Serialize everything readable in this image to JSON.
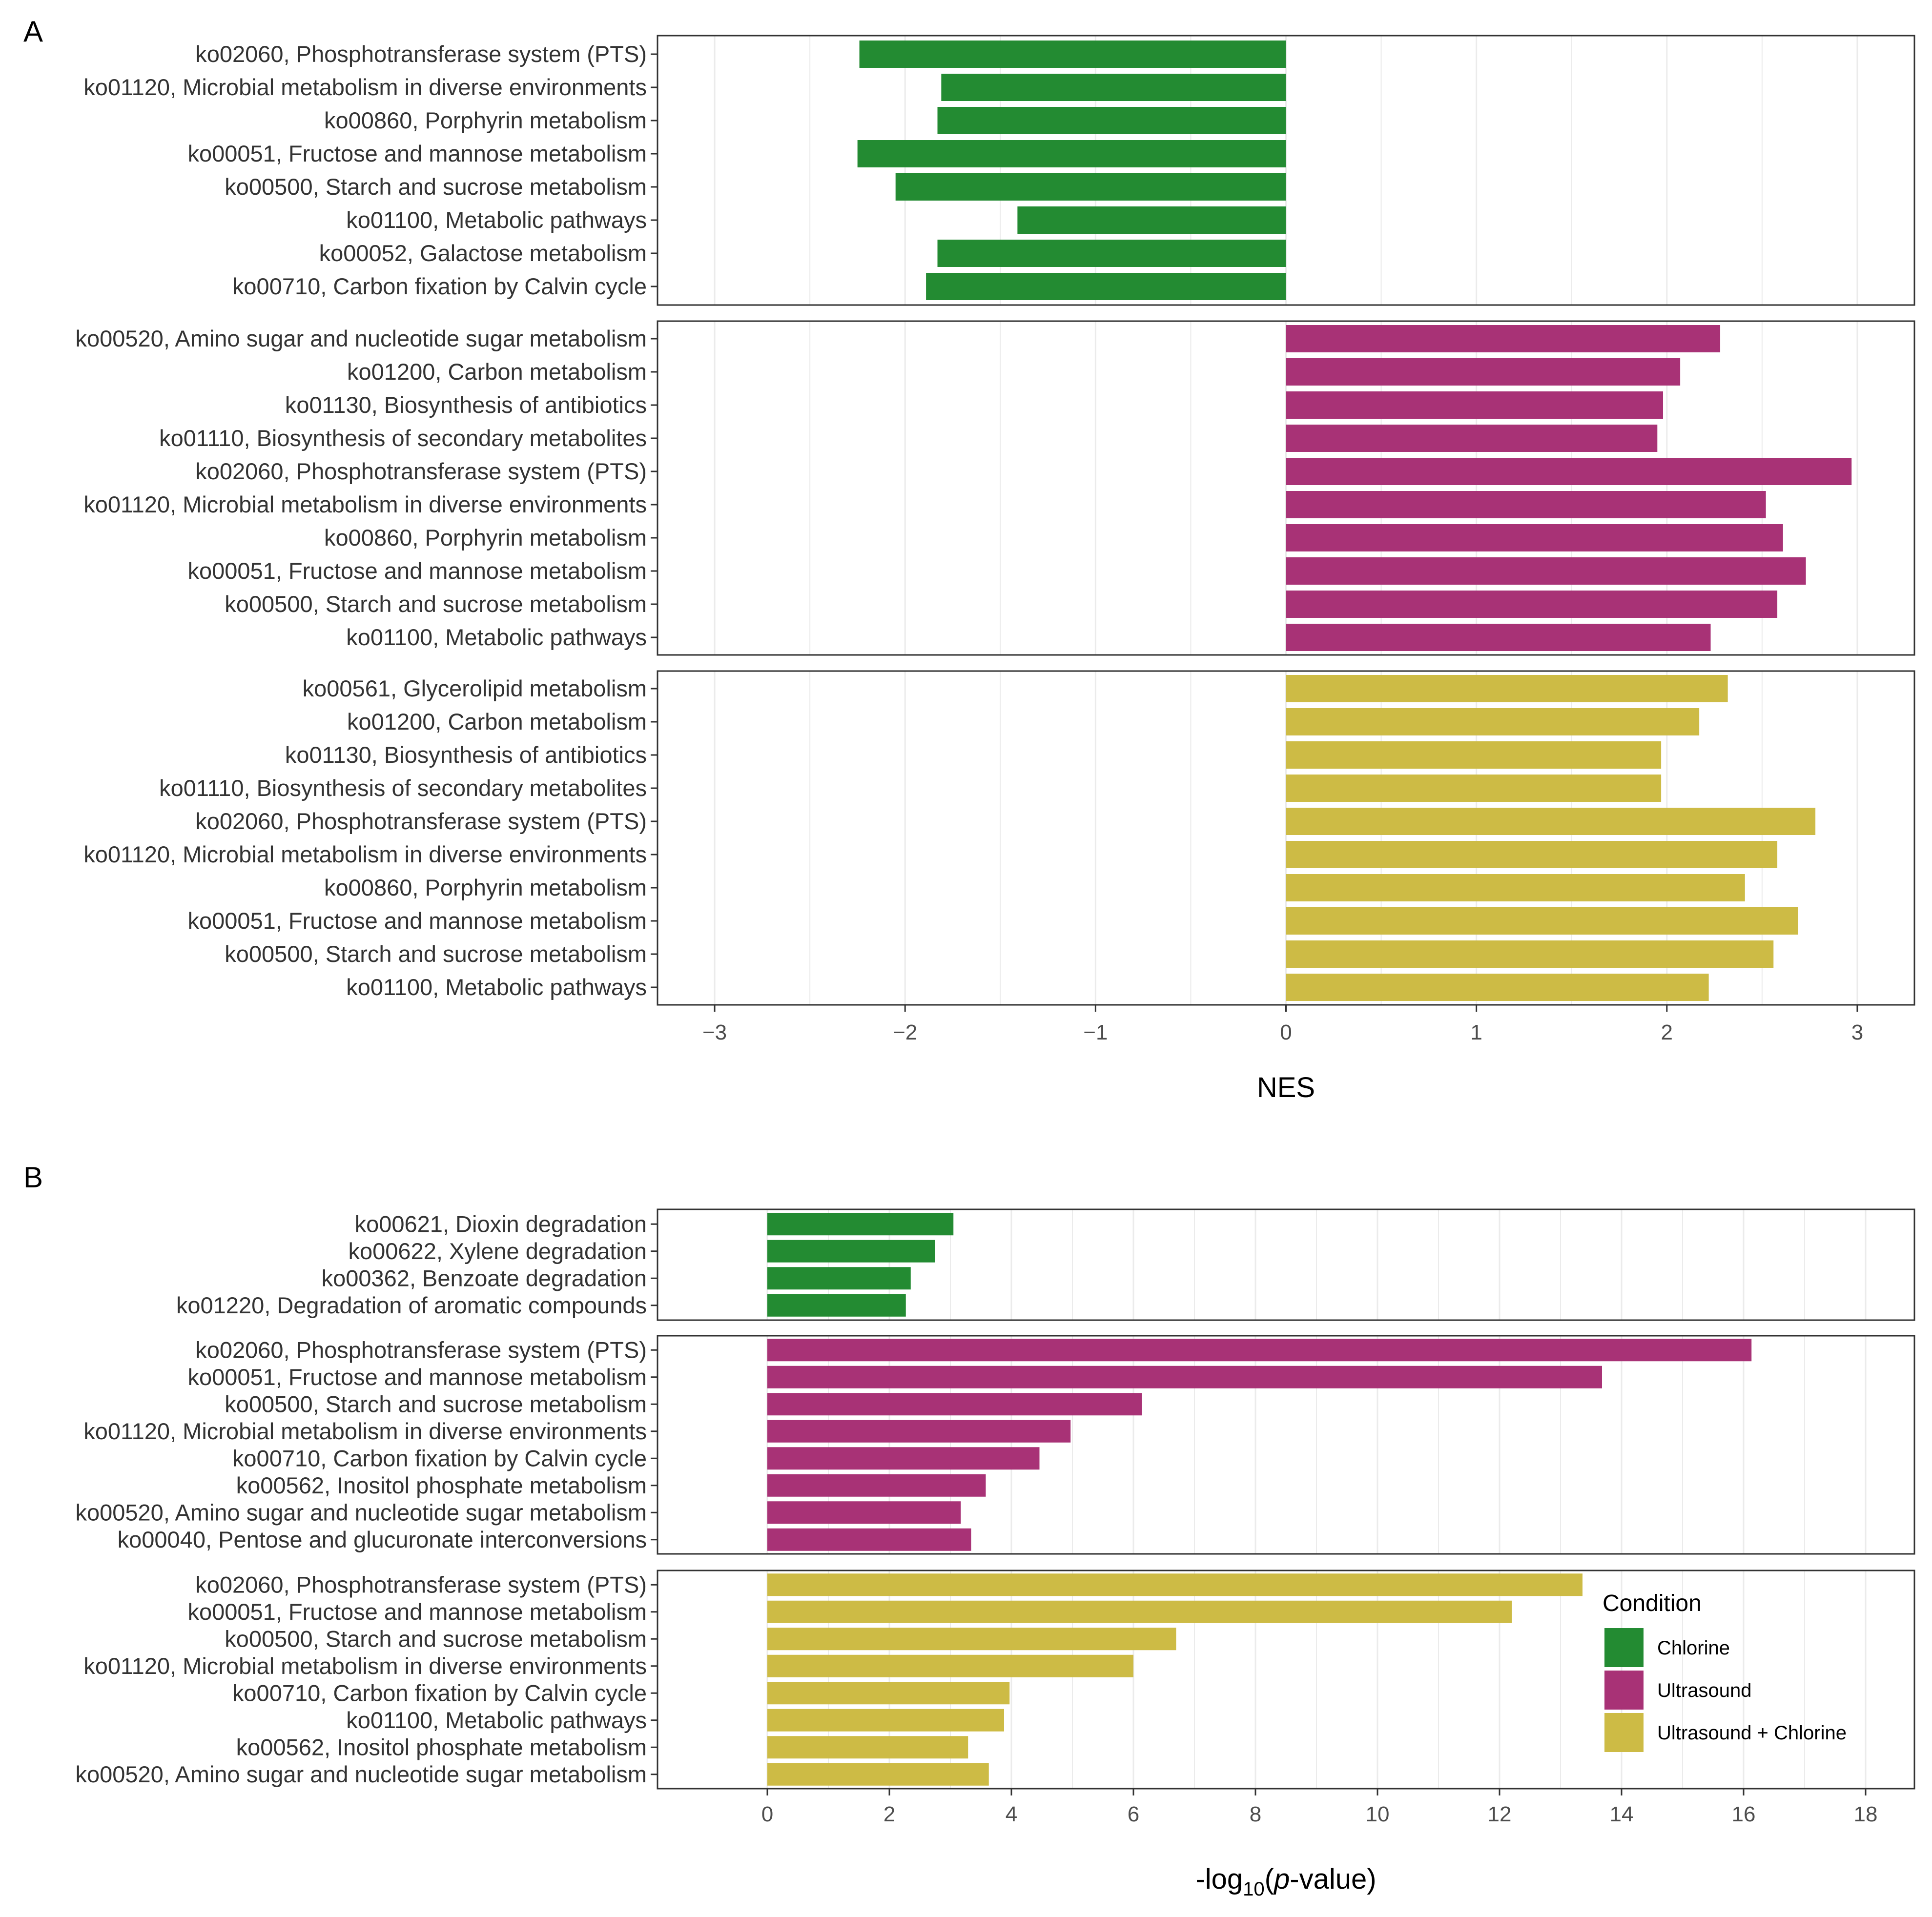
{
  "colors": {
    "Chlorine": "#238b32",
    "Ultrasound": "#a83276",
    "Ultrasound + Chlorine": "#cdbb45"
  },
  "chart_data": [
    {
      "panel_label": "A",
      "type": "bar",
      "orientation": "horizontal",
      "xlabel": "NES",
      "xlim": [
        -3.3,
        3.3
      ],
      "xticks": [
        -3,
        -2,
        -1,
        0,
        1,
        2,
        3
      ],
      "xtick_labels": [
        "−3",
        "−2",
        "−1",
        "0",
        "1",
        "2",
        "3"
      ],
      "facets": [
        {
          "condition": "Chlorine",
          "categories": [
            "ko02060, Phosphotransferase system (PTS)",
            "ko01120, Microbial metabolism in diverse environments",
            "ko00860, Porphyrin metabolism",
            "ko00051, Fructose and mannose metabolism",
            "ko00500, Starch and sucrose metabolism",
            "ko01100, Metabolic pathways",
            "ko00052, Galactose metabolism",
            "ko00710, Carbon fixation by Calvin cycle"
          ],
          "values": [
            -2.24,
            -1.81,
            -1.83,
            -2.25,
            -2.05,
            -1.41,
            -1.83,
            -1.89
          ]
        },
        {
          "condition": "Ultrasound",
          "categories": [
            "ko00520, Amino sugar and nucleotide sugar metabolism",
            "ko01200, Carbon metabolism",
            "ko01130, Biosynthesis of antibiotics",
            "ko01110, Biosynthesis of secondary metabolites",
            "ko02060, Phosphotransferase system (PTS)",
            "ko01120, Microbial metabolism in diverse environments",
            "ko00860, Porphyrin metabolism",
            "ko00051, Fructose and mannose metabolism",
            "ko00500, Starch and sucrose metabolism",
            "ko01100, Metabolic pathways"
          ],
          "values": [
            2.28,
            2.07,
            1.98,
            1.95,
            2.97,
            2.52,
            2.61,
            2.73,
            2.58,
            2.23
          ]
        },
        {
          "condition": "Ultrasound + Chlorine",
          "categories": [
            "ko00561, Glycerolipid metabolism",
            "ko01200, Carbon metabolism",
            "ko01130, Biosynthesis of antibiotics",
            "ko01110, Biosynthesis of secondary metabolites",
            "ko02060, Phosphotransferase system (PTS)",
            "ko01120, Microbial metabolism in diverse environments",
            "ko00860, Porphyrin metabolism",
            "ko00051, Fructose and mannose metabolism",
            "ko00500, Starch and sucrose metabolism",
            "ko01100, Metabolic pathways"
          ],
          "values": [
            2.32,
            2.17,
            1.97,
            1.97,
            2.78,
            2.58,
            2.41,
            2.69,
            2.56,
            2.22
          ]
        }
      ]
    },
    {
      "panel_label": "B",
      "type": "bar",
      "orientation": "horizontal",
      "xlabel_parts": [
        "-log",
        "10",
        "(",
        "p",
        "-value)"
      ],
      "xlim": [
        -1.8,
        18.8
      ],
      "xticks": [
        0,
        2,
        4,
        6,
        8,
        10,
        12,
        14,
        16,
        18
      ],
      "xtick_labels": [
        "0",
        "2",
        "4",
        "6",
        "8",
        "10",
        "12",
        "14",
        "16",
        "18"
      ],
      "facets": [
        {
          "condition": "Chlorine",
          "categories": [
            "ko00621, Dioxin degradation",
            "ko00622, Xylene degradation",
            "ko00362, Benzoate degradation",
            "ko01220, Degradation of aromatic compounds"
          ],
          "values": [
            3.05,
            2.75,
            2.35,
            2.27
          ]
        },
        {
          "condition": "Ultrasound",
          "categories": [
            "ko02060, Phosphotransferase system (PTS)",
            "ko00051, Fructose and mannose metabolism",
            "ko00500, Starch and sucrose metabolism",
            "ko01120, Microbial metabolism in diverse environments",
            "ko00710, Carbon fixation by Calvin cycle",
            "ko00562, Inositol phosphate metabolism",
            "ko00520, Amino sugar and nucleotide sugar metabolism",
            "ko00040, Pentose and glucuronate interconversions"
          ],
          "values": [
            16.13,
            13.68,
            6.14,
            4.97,
            4.46,
            3.58,
            3.17,
            3.34
          ]
        },
        {
          "condition": "Ultrasound + Chlorine",
          "categories": [
            "ko02060, Phosphotransferase system (PTS)",
            "ko00051, Fructose and mannose metabolism",
            "ko00500, Starch and sucrose metabolism",
            "ko01120, Microbial metabolism in diverse environments",
            "ko00710, Carbon fixation by Calvin cycle",
            "ko01100, Metabolic pathways",
            "ko00562, Inositol phosphate metabolism",
            "ko00520, Amino sugar and nucleotide sugar metabolism"
          ],
          "values": [
            13.36,
            12.2,
            6.7,
            6.0,
            3.97,
            3.88,
            3.29,
            3.63
          ]
        }
      ]
    }
  ],
  "legend": {
    "title": "Condition",
    "entries": [
      "Chlorine",
      "Ultrasound",
      "Ultrasound + Chlorine"
    ]
  }
}
